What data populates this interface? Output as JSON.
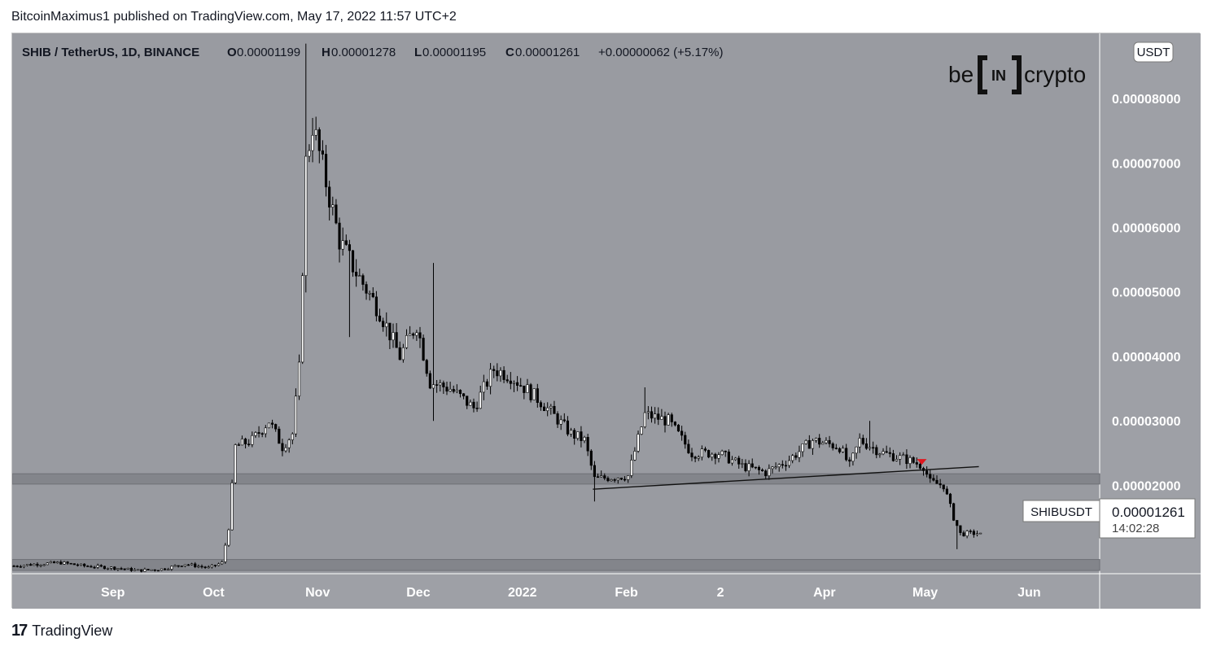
{
  "header": {
    "published": "BitcoinMaximus1 published on TradingView.com, May 17, 2022 11:57 UTC+2"
  },
  "legend": {
    "symbol": "SHIB / TetherUS, 1D, BINANCE",
    "o_label": "O",
    "o_value": "0.00001199",
    "h_label": "H",
    "h_value": "0.00001278",
    "l_label": "L",
    "l_value": "0.00001195",
    "c_label": "C",
    "c_value": "0.00001261",
    "change": "+0.00000062 (+5.17%)"
  },
  "watermark": {
    "be": "be",
    "in": "IN",
    "crypto": "crypto"
  },
  "currency_badge": "USDT",
  "price_tag": {
    "symbol": "SHIBUSDT",
    "price": "0.00001261",
    "countdown": "14:02:28"
  },
  "footer": {
    "logo": "17",
    "brand": "TradingView"
  },
  "colors": {
    "plot_bg": "#999ba1",
    "axis_bg": "#9ea0a6",
    "band": "#7f8187",
    "candle": "#000000",
    "marker": "#e0171f"
  },
  "chart_data": {
    "type": "candlestick",
    "y_ticks": [
      "0.00008000",
      "0.00007000",
      "0.00006000",
      "0.00005000",
      "0.00004000",
      "0.00003000",
      "0.00002000"
    ],
    "y_tick_values": [
      8e-05,
      7e-05,
      6e-05,
      5e-05,
      4e-05,
      3e-05,
      2e-05
    ],
    "ylim": [
      6.3e-06,
      9.01e-05
    ],
    "x_ticks": [
      "Sep",
      "Oct",
      "Nov",
      "Dec",
      "2022",
      "Feb",
      "2",
      "Apr",
      "May",
      "Jun"
    ],
    "x_tick_dates": [
      "2021-09-01",
      "2021-10-01",
      "2021-11-01",
      "2021-12-01",
      "2022-01-01",
      "2022-02-01",
      "2022-03-01",
      "2022-04-01",
      "2022-05-01",
      "2022-06-01"
    ],
    "xlim": [
      "2021-08-02",
      "2022-06-22"
    ],
    "first_date": "2021-08-02",
    "ohlc_keyframes": [
      [
        "2021-08-02",
        7.5e-06
      ],
      [
        "2021-08-09",
        7.8e-06
      ],
      [
        "2021-08-16",
        8e-06
      ],
      [
        "2021-08-23",
        7.5e-06
      ],
      [
        "2021-09-01",
        7.2e-06
      ],
      [
        "2021-09-08",
        6.8e-06
      ],
      [
        "2021-09-15",
        7e-06
      ],
      [
        "2021-09-22",
        7.8e-06
      ],
      [
        "2021-09-29",
        7.2e-06
      ],
      [
        "2021-10-03",
        8e-06
      ],
      [
        "2021-10-05",
        1.35e-05
      ],
      [
        "2021-10-07",
        2.6e-05
      ],
      [
        "2021-10-12",
        2.7e-05
      ],
      [
        "2021-10-17",
        3e-05
      ],
      [
        "2021-10-21",
        2.6e-05
      ],
      [
        "2021-10-24",
        2.8e-05
      ],
      [
        "2021-10-26",
        3.8e-05
      ],
      [
        "2021-10-28",
        7e-05
      ],
      [
        "2021-10-30",
        7.6e-05
      ],
      [
        "2021-11-03",
        6.7e-05
      ],
      [
        "2021-11-07",
        5.8e-05
      ],
      [
        "2021-11-12",
        5.3e-05
      ],
      [
        "2021-11-19",
        4.7e-05
      ],
      [
        "2021-11-25",
        4e-05
      ],
      [
        "2021-11-30",
        4.5e-05
      ],
      [
        "2021-12-04",
        3.6e-05
      ],
      [
        "2021-12-10",
        3.5e-05
      ],
      [
        "2021-12-17",
        3.2e-05
      ],
      [
        "2021-12-23",
        3.8e-05
      ],
      [
        "2021-12-28",
        3.7e-05
      ],
      [
        "2022-01-06",
        3.3e-05
      ],
      [
        "2022-01-15",
        2.8e-05
      ],
      [
        "2022-01-19",
        2.7e-05
      ],
      [
        "2022-01-22",
        2.1e-05
      ],
      [
        "2022-02-01",
        2.15e-05
      ],
      [
        "2022-02-06",
        3.1e-05
      ],
      [
        "2022-02-13",
        3e-05
      ],
      [
        "2022-02-20",
        2.5e-05
      ],
      [
        "2022-02-28",
        2.5e-05
      ],
      [
        "2022-03-07",
        2.3e-05
      ],
      [
        "2022-03-14",
        2.2e-05
      ],
      [
        "2022-03-21",
        2.4e-05
      ],
      [
        "2022-03-28",
        2.7e-05
      ],
      [
        "2022-04-05",
        2.6e-05
      ],
      [
        "2022-04-08",
        2.3e-05
      ],
      [
        "2022-04-11",
        2.7e-05
      ],
      [
        "2022-04-18",
        2.5e-05
      ],
      [
        "2022-04-25",
        2.4e-05
      ],
      [
        "2022-04-30",
        2.3e-05
      ],
      [
        "2022-05-02",
        2.05e-05
      ],
      [
        "2022-05-06",
        2e-05
      ],
      [
        "2022-05-09",
        1.5e-05
      ],
      [
        "2022-05-11",
        1.25e-05
      ],
      [
        "2022-05-17",
        1.26e-05
      ]
    ],
    "spikes_high": [
      [
        "2021-10-28",
        8.85e-05
      ],
      [
        "2021-12-05",
        5.45e-05
      ],
      [
        "2022-02-06",
        3.52e-05
      ],
      [
        "2022-04-14",
        3e-05
      ]
    ],
    "spikes_low": [
      [
        "2021-11-10",
        4.3e-05
      ],
      [
        "2021-12-05",
        3e-05
      ],
      [
        "2022-01-22",
        1.75e-05
      ],
      [
        "2022-05-10",
        1.01e-05
      ]
    ],
    "support_bands": [
      [
        2.02e-05,
        2.18e-05
      ],
      [
        6.8e-06,
        8.5e-06
      ]
    ],
    "trendline": [
      [
        "2022-01-22",
        1.94e-05
      ],
      [
        "2022-05-17",
        2.29e-05
      ]
    ],
    "breakdown_marker": [
      "2022-04-30",
      2.32e-05
    ]
  }
}
